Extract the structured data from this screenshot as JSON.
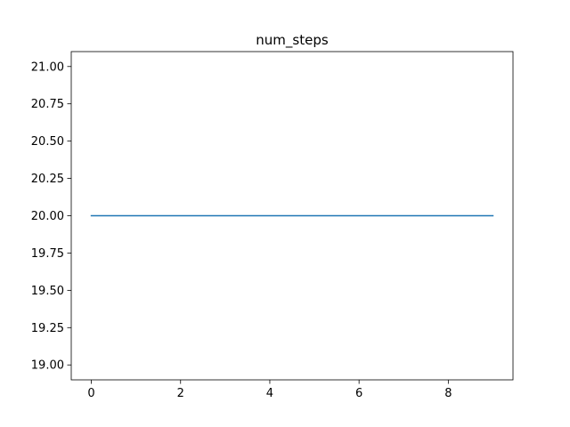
{
  "chart_data": {
    "type": "line",
    "title": "num_steps",
    "xlabel": "",
    "ylabel": "",
    "xlim": [
      -0.45,
      9.45
    ],
    "ylim": [
      18.9,
      21.1
    ],
    "xticks": [
      0,
      2,
      4,
      6,
      8
    ],
    "xtick_labels": [
      "0",
      "2",
      "4",
      "6",
      "8"
    ],
    "yticks": [
      19.0,
      19.25,
      19.5,
      19.75,
      20.0,
      20.25,
      20.5,
      20.75,
      21.0
    ],
    "ytick_labels": [
      "19.00",
      "19.25",
      "19.50",
      "19.75",
      "20.00",
      "20.25",
      "20.50",
      "20.75",
      "21.00"
    ],
    "grid": false,
    "series": [
      {
        "x": [
          0,
          1,
          2,
          3,
          4,
          5,
          6,
          7,
          8,
          9
        ],
        "values": [
          20,
          20,
          20,
          20,
          20,
          20,
          20,
          20,
          20,
          20
        ],
        "color": "#1f77b4"
      }
    ]
  }
}
